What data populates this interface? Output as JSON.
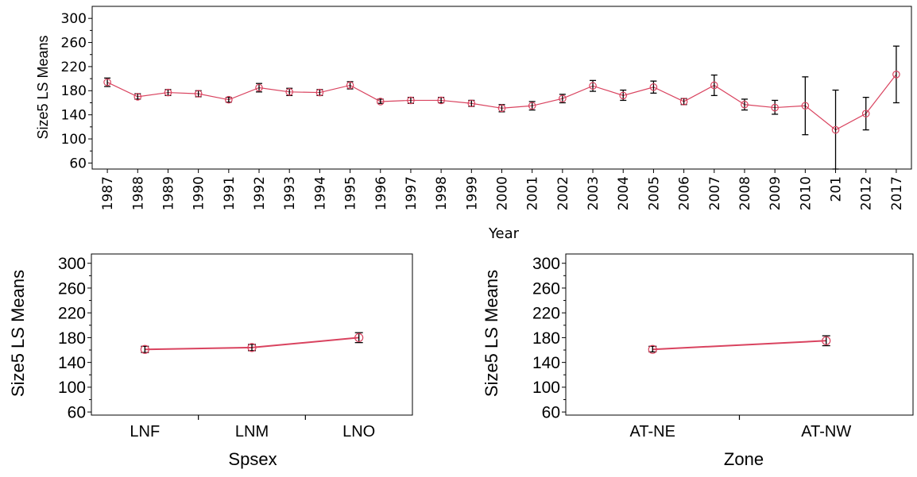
{
  "colors": {
    "series": "#d9435f",
    "error_bar": "#000000",
    "frame": "#000000"
  },
  "chart_data": [
    {
      "type": "line",
      "xlabel": "Year",
      "ylabel": "Size5 LS Means",
      "ylim": [
        50,
        320
      ],
      "yticks": [
        60,
        100,
        140,
        180,
        220,
        260,
        300
      ],
      "grid": false,
      "categories": [
        "1987",
        "1988",
        "1989",
        "1990",
        "1991",
        "1992",
        "1993",
        "1994",
        "1995",
        "1996",
        "1997",
        "1998",
        "1999",
        "2000",
        "2001",
        "2002",
        "2003",
        "2004",
        "2005",
        "2006",
        "2007",
        "2008",
        "2009",
        "2010",
        "201",
        "2012",
        "2017"
      ],
      "values": [
        194,
        170,
        177,
        175,
        165,
        185,
        178,
        177,
        189,
        162,
        164,
        164,
        159,
        151,
        155,
        167,
        188,
        172,
        186,
        162,
        189,
        157,
        152,
        155,
        115,
        142,
        207
      ],
      "lower": [
        187,
        166,
        172,
        170,
        161,
        178,
        172,
        172,
        183,
        159,
        159,
        160,
        154,
        145,
        148,
        160,
        179,
        164,
        176,
        157,
        172,
        148,
        141,
        107,
        50,
        115,
        160
      ],
      "upper": [
        201,
        175,
        182,
        180,
        169,
        192,
        184,
        182,
        195,
        166,
        169,
        169,
        164,
        157,
        162,
        174,
        197,
        181,
        196,
        167,
        206,
        166,
        164,
        203,
        181,
        169,
        254
      ]
    },
    {
      "type": "line",
      "xlabel": "Spsex",
      "ylabel": "Size5 LS Means",
      "ylim": [
        55,
        315
      ],
      "yticks": [
        60,
        100,
        140,
        180,
        220,
        260,
        300
      ],
      "grid": false,
      "categories": [
        "LNF",
        "LNM",
        "LNO"
      ],
      "values": [
        161,
        164,
        180
      ],
      "lower": [
        156,
        159,
        172
      ],
      "upper": [
        166,
        169,
        188
      ]
    },
    {
      "type": "line",
      "xlabel": "Zone",
      "ylabel": "Size5 LS Means",
      "ylim": [
        55,
        315
      ],
      "yticks": [
        60,
        100,
        140,
        180,
        220,
        260,
        300
      ],
      "grid": false,
      "categories": [
        "AT-NE",
        "AT-NW"
      ],
      "values": [
        161,
        175
      ],
      "lower": [
        157,
        167
      ],
      "upper": [
        166,
        183
      ]
    }
  ]
}
